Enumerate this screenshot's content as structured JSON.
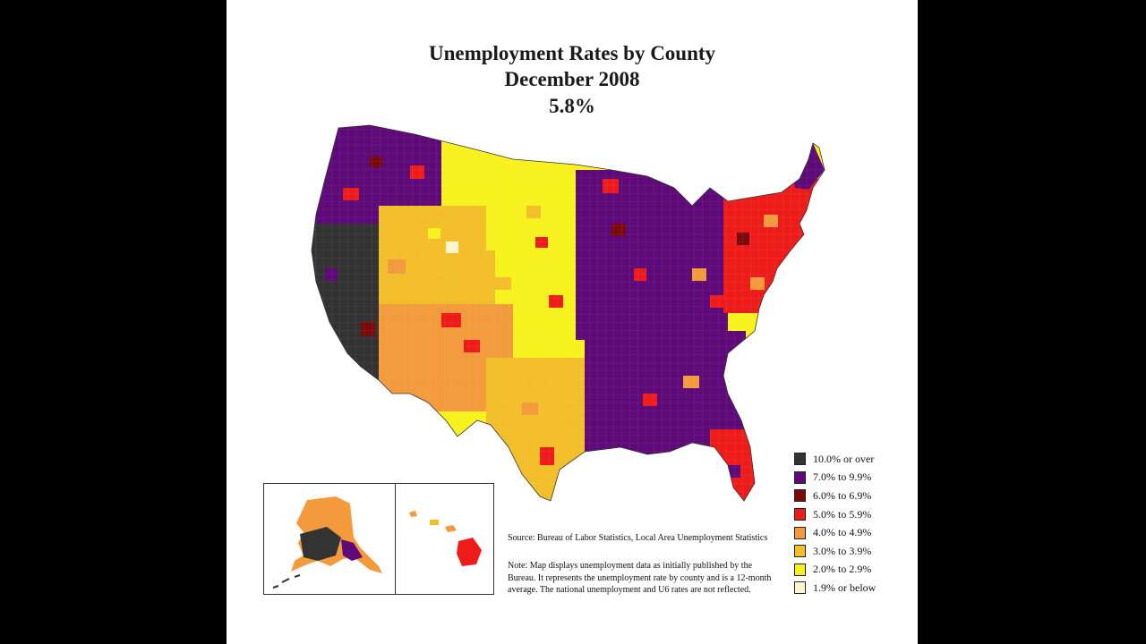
{
  "title": {
    "line1": "Unemployment Rates by County",
    "line2": "December 2008",
    "line3": "5.8%"
  },
  "legend": [
    {
      "label": "10.0% or over",
      "color": "#333333"
    },
    {
      "label": "7.0% to 9.9%",
      "color": "#5e0a78"
    },
    {
      "label": "6.0% to 6.9%",
      "color": "#7a0a0a"
    },
    {
      "label": "5.0% to 5.9%",
      "color": "#ee1b1b"
    },
    {
      "label": "4.0% to 4.9%",
      "color": "#f29a3c"
    },
    {
      "label": "3.0% to 3.9%",
      "color": "#f2bf2a"
    },
    {
      "label": "2.0% to 2.9%",
      "color": "#f7f21e"
    },
    {
      "label": "1.9% or below",
      "color": "#fdf7cf"
    }
  ],
  "source": "Source: Bureau of Labor Statistics, Local Area Unemployment Statistics",
  "note": "Note: Map displays unemployment data as initially published by the Bureau. It represents the unemployment rate by county and is a 12-month average. The national unemployment and U6 rates are not reflected.",
  "map": {
    "regions": [
      {
        "name": "region-pacific-northwest",
        "color": "#5e0a78"
      },
      {
        "name": "region-california",
        "color": "#333333"
      },
      {
        "name": "region-mountain-west",
        "color": "#f2bf2a"
      },
      {
        "name": "region-great-plains",
        "color": "#f7f21e"
      },
      {
        "name": "region-southwest",
        "color": "#f29a3c"
      },
      {
        "name": "region-texas",
        "color": "#f2bf2a"
      },
      {
        "name": "region-midwest",
        "color": "#5e0a78"
      },
      {
        "name": "region-southeast",
        "color": "#5e0a78"
      },
      {
        "name": "region-northeast",
        "color": "#ee1b1b"
      },
      {
        "name": "region-florida",
        "color": "#ee1b1b"
      },
      {
        "name": "region-michigan",
        "color": "#5e0a78"
      },
      {
        "name": "region-maine",
        "color": "#5e0a78"
      }
    ],
    "alaska_color": "#f29a3c",
    "hawaii_color": "#ee1b1b"
  }
}
